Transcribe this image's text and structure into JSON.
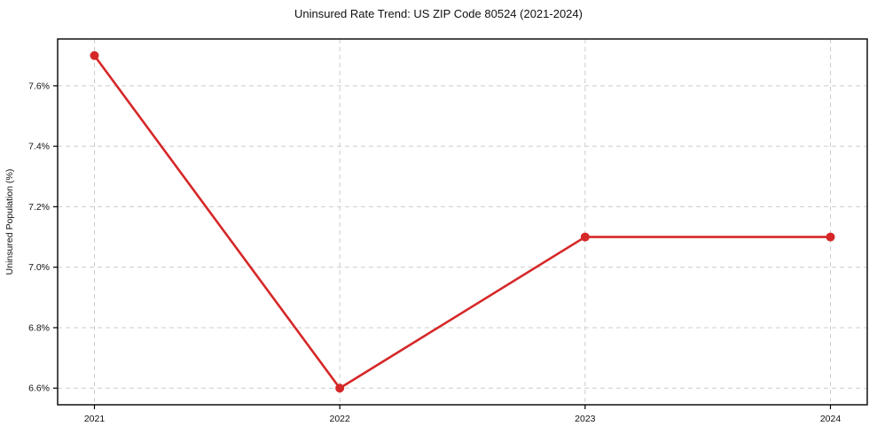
{
  "chart_data": {
    "type": "line",
    "title": "Uninsured Rate Trend: US ZIP Code 80524 (2021-2024)",
    "xlabel": "",
    "ylabel": "Uninsured Population (%)",
    "x": [
      2021,
      2022,
      2023,
      2024
    ],
    "categories": [
      "2021",
      "2022",
      "2023",
      "2024"
    ],
    "series": [
      {
        "name": "Uninsured Rate",
        "values": [
          7.7,
          6.6,
          7.1,
          7.1
        ],
        "color": "#d62728",
        "marker": "circle"
      }
    ],
    "xlim": [
      2020.85,
      2024.15
    ],
    "ylim": [
      6.545,
      7.755
    ],
    "xticks": [
      2021,
      2022,
      2023,
      2024
    ],
    "xtick_labels": [
      "2021",
      "2022",
      "2023",
      "2024"
    ],
    "yticks": [
      6.6,
      6.8,
      7.0,
      7.2,
      7.4,
      7.6
    ],
    "ytick_labels": [
      "6.6%",
      "6.8%",
      "7.0%",
      "7.2%",
      "7.4%",
      "7.6%"
    ],
    "grid": true,
    "grid_style": "dashed",
    "legend": false,
    "colors": {
      "line": "#d62728",
      "grid": "#cccccc",
      "spine": "#000000",
      "text": "#111111",
      "background": "#ffffff"
    }
  }
}
